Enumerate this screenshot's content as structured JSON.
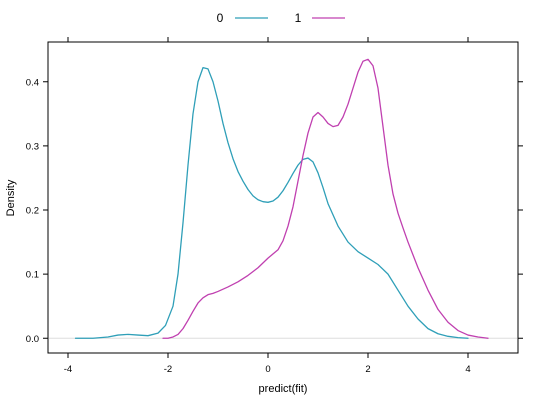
{
  "chart_data": {
    "type": "line",
    "title": "",
    "xlabel": "predict(fit)",
    "ylabel": "Density",
    "xlim": [
      -4.4,
      5.0
    ],
    "ylim": [
      -0.023,
      0.462
    ],
    "x_ticks": [
      -4,
      -2,
      0,
      2,
      4
    ],
    "y_ticks": [
      0.0,
      0.1,
      0.2,
      0.3,
      0.4
    ],
    "x_tick_labels": [
      "-4",
      "-2",
      "0",
      "2",
      "4"
    ],
    "y_tick_labels": [
      "0.0",
      "0.1",
      "0.2",
      "0.3",
      "0.4"
    ],
    "grid": false,
    "legend_position": "top",
    "baseline_color": "#dddddd",
    "series": [
      {
        "name": "0",
        "color": "#2f9fb8",
        "x": [
          -3.85,
          -3.5,
          -3.2,
          -3.0,
          -2.8,
          -2.6,
          -2.4,
          -2.2,
          -2.05,
          -1.9,
          -1.8,
          -1.7,
          -1.6,
          -1.5,
          -1.4,
          -1.3,
          -1.2,
          -1.1,
          -1.0,
          -0.9,
          -0.8,
          -0.7,
          -0.6,
          -0.5,
          -0.4,
          -0.3,
          -0.2,
          -0.1,
          0.0,
          0.1,
          0.2,
          0.3,
          0.4,
          0.5,
          0.6,
          0.7,
          0.8,
          0.9,
          1.0,
          1.1,
          1.2,
          1.4,
          1.6,
          1.8,
          2.0,
          2.2,
          2.4,
          2.6,
          2.8,
          3.0,
          3.2,
          3.4,
          3.6,
          3.8,
          4.0
        ],
        "y": [
          0.0,
          0.0,
          0.002,
          0.005,
          0.006,
          0.005,
          0.004,
          0.008,
          0.02,
          0.05,
          0.1,
          0.18,
          0.27,
          0.35,
          0.4,
          0.422,
          0.42,
          0.4,
          0.37,
          0.335,
          0.305,
          0.28,
          0.26,
          0.245,
          0.232,
          0.222,
          0.216,
          0.213,
          0.212,
          0.214,
          0.22,
          0.23,
          0.243,
          0.257,
          0.27,
          0.279,
          0.281,
          0.275,
          0.258,
          0.235,
          0.21,
          0.175,
          0.15,
          0.135,
          0.125,
          0.115,
          0.1,
          0.075,
          0.05,
          0.03,
          0.015,
          0.007,
          0.003,
          0.001,
          0.0
        ]
      },
      {
        "name": "1",
        "color": "#c040b0",
        "x": [
          -2.1,
          -2.0,
          -1.9,
          -1.8,
          -1.7,
          -1.6,
          -1.5,
          -1.4,
          -1.3,
          -1.2,
          -1.1,
          -1.0,
          -0.8,
          -0.6,
          -0.4,
          -0.2,
          0.0,
          0.2,
          0.3,
          0.4,
          0.5,
          0.6,
          0.7,
          0.8,
          0.9,
          1.0,
          1.1,
          1.2,
          1.3,
          1.4,
          1.5,
          1.6,
          1.7,
          1.8,
          1.9,
          2.0,
          2.1,
          2.2,
          2.3,
          2.4,
          2.5,
          2.6,
          2.7,
          2.8,
          3.0,
          3.2,
          3.4,
          3.6,
          3.8,
          4.0,
          4.2,
          4.4
        ],
        "y": [
          0.0,
          0.0,
          0.002,
          0.006,
          0.015,
          0.028,
          0.042,
          0.055,
          0.063,
          0.068,
          0.07,
          0.073,
          0.08,
          0.088,
          0.098,
          0.11,
          0.125,
          0.138,
          0.152,
          0.175,
          0.205,
          0.245,
          0.285,
          0.32,
          0.345,
          0.352,
          0.345,
          0.335,
          0.33,
          0.332,
          0.345,
          0.365,
          0.39,
          0.415,
          0.432,
          0.435,
          0.425,
          0.39,
          0.33,
          0.27,
          0.225,
          0.195,
          0.172,
          0.15,
          0.11,
          0.075,
          0.045,
          0.025,
          0.012,
          0.005,
          0.002,
          0.0
        ]
      }
    ]
  }
}
